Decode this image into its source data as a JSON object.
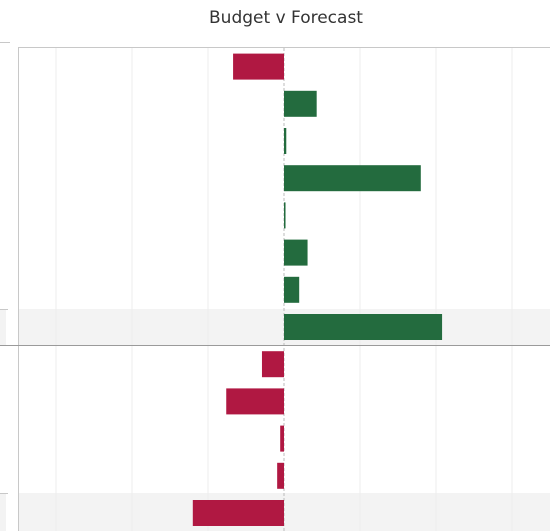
{
  "chart_data": {
    "type": "bar",
    "orientation": "horizontal",
    "title": "Budget v Forecast",
    "values": [
      -0.67,
      0.43,
      0.03,
      1.8,
      0.02,
      0.31,
      0.2,
      2.08,
      -0.29,
      -0.76,
      -0.05,
      -0.09,
      -1.2
    ],
    "colors": {
      "positive": "#236b3e",
      "negative": "#b01842"
    },
    "xlim": [
      -3.5,
      3.5
    ],
    "xticks": [
      -3,
      -2,
      -1,
      0,
      1,
      2,
      3
    ],
    "grid": true
  }
}
